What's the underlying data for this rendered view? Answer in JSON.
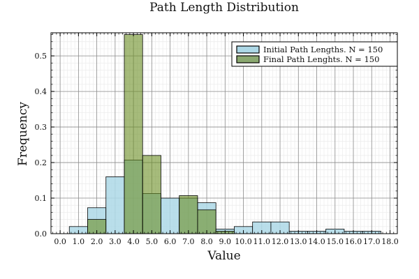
{
  "chart_data": {
    "type": "bar",
    "title": "Path Length Distribution",
    "xlabel": "Value",
    "ylabel": "Frequency",
    "xlim": [
      -0.5,
      18.4
    ],
    "ylim": [
      0,
      0.565
    ],
    "xticks": [
      0,
      1,
      2,
      3,
      4,
      5,
      6,
      7,
      8,
      9,
      10,
      11,
      12,
      13,
      14,
      15,
      16,
      17,
      18
    ],
    "xtick_labels": [
      "0.0",
      "1.0",
      "2.0",
      "3.0",
      "4.0",
      "5.0",
      "6.0",
      "7.0",
      "8.0",
      "9.0",
      "10.0",
      "11.0",
      "12.0",
      "13.0",
      "14.0",
      "15.0",
      "16.0",
      "17.0",
      "18.0"
    ],
    "yticks": [
      0,
      0.1,
      0.2,
      0.3,
      0.4,
      0.5
    ],
    "ytick_labels": [
      "0.0",
      "0.1",
      "0.2",
      "0.3",
      "0.4",
      "0.5"
    ],
    "grid": true,
    "legend_position": "top-right",
    "series": [
      {
        "name": "Initial Path Lengths. N = 150",
        "color": "#add8e6",
        "bins": [
          {
            "x0": 0.5,
            "x1": 1.5,
            "value": 0.02
          },
          {
            "x0": 1.5,
            "x1": 2.5,
            "value": 0.073
          },
          {
            "x0": 2.5,
            "x1": 3.5,
            "value": 0.16
          },
          {
            "x0": 3.5,
            "x1": 4.5,
            "value": 0.207
          },
          {
            "x0": 4.5,
            "x1": 5.5,
            "value": 0.113
          },
          {
            "x0": 5.5,
            "x1": 6.5,
            "value": 0.1
          },
          {
            "x0": 6.5,
            "x1": 7.5,
            "value": 0.1
          },
          {
            "x0": 7.5,
            "x1": 8.5,
            "value": 0.087
          },
          {
            "x0": 8.5,
            "x1": 9.5,
            "value": 0.013
          },
          {
            "x0": 9.5,
            "x1": 10.5,
            "value": 0.02
          },
          {
            "x0": 10.5,
            "x1": 11.5,
            "value": 0.033
          },
          {
            "x0": 11.5,
            "x1": 12.5,
            "value": 0.033
          },
          {
            "x0": 12.5,
            "x1": 13.5,
            "value": 0.007
          },
          {
            "x0": 13.5,
            "x1": 14.5,
            "value": 0.007
          },
          {
            "x0": 14.5,
            "x1": 15.5,
            "value": 0.013
          },
          {
            "x0": 15.5,
            "x1": 16.5,
            "value": 0.007
          },
          {
            "x0": 16.5,
            "x1": 17.5,
            "value": 0.007
          }
        ]
      },
      {
        "name": "Final Path Lenghts. N = 150",
        "color": "#6b8e23",
        "bins": [
          {
            "x0": 1.5,
            "x1": 2.5,
            "value": 0.04
          },
          {
            "x0": 3.5,
            "x1": 4.5,
            "value": 0.56
          },
          {
            "x0": 4.5,
            "x1": 5.5,
            "value": 0.22
          },
          {
            "x0": 6.5,
            "x1": 7.5,
            "value": 0.107
          },
          {
            "x0": 7.5,
            "x1": 8.5,
            "value": 0.067
          },
          {
            "x0": 8.5,
            "x1": 9.5,
            "value": 0.007
          }
        ]
      }
    ]
  }
}
